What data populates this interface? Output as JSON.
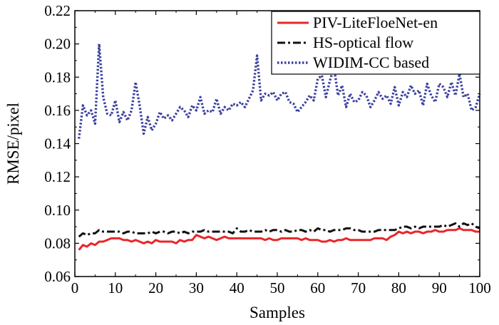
{
  "chart_data": {
    "type": "line",
    "title": "",
    "xlabel": "Samples",
    "ylabel": "RMSE/pixel",
    "xlim": [
      0,
      100
    ],
    "ylim": [
      0.06,
      0.22
    ],
    "xticks": [
      0,
      10,
      20,
      30,
      40,
      50,
      60,
      70,
      80,
      90,
      100
    ],
    "yticks": [
      0.06,
      0.08,
      0.1,
      0.12,
      0.14,
      0.16,
      0.18,
      0.2,
      0.22
    ],
    "xtick_labels": [
      "0",
      "10",
      "20",
      "30",
      "40",
      "50",
      "60",
      "70",
      "80",
      "90",
      "100"
    ],
    "ytick_labels": [
      "0.06",
      "0.08",
      "0.10",
      "0.12",
      "0.14",
      "0.16",
      "0.18",
      "0.20",
      "0.22"
    ],
    "legend_position": "top-right",
    "series": [
      {
        "name": "PIV-LiteFloeNet-en",
        "color": "#e8262a",
        "dash": "solid",
        "x": [
          1,
          2,
          3,
          4,
          5,
          6,
          7,
          8,
          9,
          10,
          11,
          12,
          13,
          14,
          15,
          16,
          17,
          18,
          19,
          20,
          21,
          22,
          23,
          24,
          25,
          26,
          27,
          28,
          29,
          30,
          31,
          32,
          33,
          34,
          35,
          36,
          37,
          38,
          39,
          40,
          41,
          42,
          43,
          44,
          45,
          46,
          47,
          48,
          49,
          50,
          51,
          52,
          53,
          54,
          55,
          56,
          57,
          58,
          59,
          60,
          61,
          62,
          63,
          64,
          65,
          66,
          67,
          68,
          69,
          70,
          71,
          72,
          73,
          74,
          75,
          76,
          77,
          78,
          79,
          80,
          81,
          82,
          83,
          84,
          85,
          86,
          87,
          88,
          89,
          90,
          91,
          92,
          93,
          94,
          95,
          96,
          97,
          98,
          99,
          100
        ],
        "values": [
          0.076,
          0.079,
          0.078,
          0.08,
          0.079,
          0.081,
          0.081,
          0.082,
          0.083,
          0.083,
          0.083,
          0.082,
          0.082,
          0.081,
          0.082,
          0.081,
          0.08,
          0.081,
          0.08,
          0.082,
          0.081,
          0.081,
          0.081,
          0.081,
          0.08,
          0.082,
          0.081,
          0.082,
          0.082,
          0.085,
          0.084,
          0.083,
          0.084,
          0.083,
          0.082,
          0.083,
          0.084,
          0.083,
          0.083,
          0.083,
          0.083,
          0.083,
          0.083,
          0.083,
          0.083,
          0.083,
          0.082,
          0.083,
          0.082,
          0.082,
          0.083,
          0.083,
          0.083,
          0.083,
          0.083,
          0.082,
          0.083,
          0.082,
          0.082,
          0.082,
          0.081,
          0.081,
          0.082,
          0.081,
          0.082,
          0.082,
          0.083,
          0.082,
          0.082,
          0.082,
          0.082,
          0.082,
          0.082,
          0.083,
          0.083,
          0.083,
          0.082,
          0.084,
          0.085,
          0.087,
          0.086,
          0.087,
          0.086,
          0.087,
          0.087,
          0.086,
          0.087,
          0.087,
          0.088,
          0.087,
          0.087,
          0.088,
          0.088,
          0.088,
          0.089,
          0.088,
          0.088,
          0.088,
          0.087,
          0.087
        ]
      },
      {
        "name": "HS-optical flow",
        "color": "#111111",
        "dash": "dashdot",
        "x": [
          1,
          2,
          3,
          4,
          5,
          6,
          7,
          8,
          9,
          10,
          11,
          12,
          13,
          14,
          15,
          16,
          17,
          18,
          19,
          20,
          21,
          22,
          23,
          24,
          25,
          26,
          27,
          28,
          29,
          30,
          31,
          32,
          33,
          34,
          35,
          36,
          37,
          38,
          39,
          40,
          41,
          42,
          43,
          44,
          45,
          46,
          47,
          48,
          49,
          50,
          51,
          52,
          53,
          54,
          55,
          56,
          57,
          58,
          59,
          60,
          61,
          62,
          63,
          64,
          65,
          66,
          67,
          68,
          69,
          70,
          71,
          72,
          73,
          74,
          75,
          76,
          77,
          78,
          79,
          80,
          81,
          82,
          83,
          84,
          85,
          86,
          87,
          88,
          89,
          90,
          91,
          92,
          93,
          94,
          95,
          96,
          97,
          98,
          99,
          100
        ],
        "values": [
          0.084,
          0.086,
          0.085,
          0.086,
          0.086,
          0.088,
          0.087,
          0.087,
          0.087,
          0.087,
          0.087,
          0.086,
          0.087,
          0.087,
          0.086,
          0.086,
          0.086,
          0.086,
          0.087,
          0.086,
          0.087,
          0.087,
          0.086,
          0.087,
          0.087,
          0.086,
          0.087,
          0.086,
          0.087,
          0.087,
          0.087,
          0.088,
          0.087,
          0.087,
          0.087,
          0.087,
          0.087,
          0.087,
          0.086,
          0.089,
          0.087,
          0.087,
          0.088,
          0.087,
          0.087,
          0.087,
          0.088,
          0.087,
          0.088,
          0.088,
          0.087,
          0.088,
          0.087,
          0.087,
          0.088,
          0.088,
          0.087,
          0.088,
          0.087,
          0.089,
          0.088,
          0.088,
          0.087,
          0.088,
          0.088,
          0.088,
          0.089,
          0.089,
          0.088,
          0.088,
          0.087,
          0.087,
          0.087,
          0.087,
          0.088,
          0.088,
          0.088,
          0.088,
          0.088,
          0.089,
          0.09,
          0.09,
          0.089,
          0.09,
          0.089,
          0.09,
          0.09,
          0.09,
          0.09,
          0.09,
          0.091,
          0.09,
          0.091,
          0.092,
          0.09,
          0.092,
          0.091,
          0.092,
          0.09,
          0.089
        ]
      },
      {
        "name": "WIDIM-CC based",
        "color": "#3a40a0",
        "dash": "dotted",
        "x": [
          1,
          2,
          3,
          4,
          5,
          6,
          7,
          8,
          9,
          10,
          11,
          12,
          13,
          14,
          15,
          16,
          17,
          18,
          19,
          20,
          21,
          22,
          23,
          24,
          25,
          26,
          27,
          28,
          29,
          30,
          31,
          32,
          33,
          34,
          35,
          36,
          37,
          38,
          39,
          40,
          41,
          42,
          43,
          44,
          45,
          46,
          47,
          48,
          49,
          50,
          51,
          52,
          53,
          54,
          55,
          56,
          57,
          58,
          59,
          60,
          61,
          62,
          63,
          64,
          65,
          66,
          67,
          68,
          69,
          70,
          71,
          72,
          73,
          74,
          75,
          76,
          77,
          78,
          79,
          80,
          81,
          82,
          83,
          84,
          85,
          86,
          87,
          88,
          89,
          90,
          91,
          92,
          93,
          94,
          95,
          96,
          97,
          98,
          99,
          100
        ],
        "values": [
          0.143,
          0.163,
          0.157,
          0.16,
          0.152,
          0.2,
          0.168,
          0.158,
          0.157,
          0.166,
          0.153,
          0.159,
          0.154,
          0.16,
          0.177,
          0.163,
          0.146,
          0.156,
          0.148,
          0.152,
          0.159,
          0.155,
          0.157,
          0.154,
          0.158,
          0.162,
          0.16,
          0.156,
          0.163,
          0.16,
          0.168,
          0.158,
          0.16,
          0.159,
          0.167,
          0.158,
          0.162,
          0.16,
          0.164,
          0.163,
          0.165,
          0.162,
          0.167,
          0.172,
          0.193,
          0.166,
          0.17,
          0.169,
          0.171,
          0.166,
          0.17,
          0.171,
          0.165,
          0.164,
          0.159,
          0.162,
          0.165,
          0.169,
          0.166,
          0.179,
          0.181,
          0.168,
          0.178,
          0.186,
          0.169,
          0.175,
          0.162,
          0.17,
          0.165,
          0.166,
          0.171,
          0.169,
          0.162,
          0.166,
          0.171,
          0.167,
          0.169,
          0.164,
          0.174,
          0.163,
          0.171,
          0.168,
          0.175,
          0.17,
          0.172,
          0.163,
          0.176,
          0.169,
          0.165,
          0.176,
          0.174,
          0.168,
          0.177,
          0.169,
          0.182,
          0.168,
          0.17,
          0.16,
          0.162,
          0.17
        ]
      }
    ]
  }
}
